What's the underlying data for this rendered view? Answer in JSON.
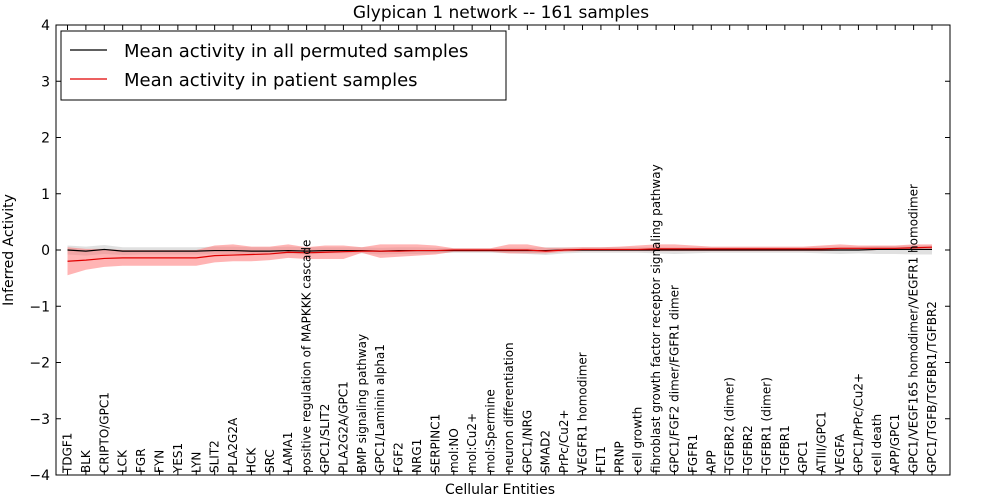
{
  "chart_data": {
    "type": "line",
    "title": "Glypican 1 network -- 161 samples",
    "xlabel": "Cellular Entities",
    "ylabel": "Inferred Activity",
    "ylim": [
      -4,
      4
    ],
    "yticks": [
      -4,
      -3,
      -2,
      -1,
      0,
      1,
      2,
      3,
      4
    ],
    "ytick_labels": [
      "−4",
      "−3",
      "−2",
      "−1",
      "0",
      "1",
      "2",
      "3",
      "4"
    ],
    "grid": false,
    "legend_position": "top-left",
    "categories": [
      "TDGF1",
      "BLK",
      "CRIPTO/GPC1",
      "LCK",
      "FGR",
      "FYN",
      "YES1",
      "LYN",
      "SLIT2",
      "PLA2G2A",
      "HCK",
      "SRC",
      "LAMA1",
      "positive regulation of MAPKKK cascade",
      "GPC1/SLIT2",
      "PLA2G2A/GPC1",
      "BMP signaling pathway",
      "GPC1/Laminin alpha1",
      "FGF2",
      "NRG1",
      "SERPINC1",
      "mol:NO",
      "mol:Cu2+",
      "mol:Spermine",
      "neuron differentiation",
      "GPC1/NRG",
      "SMAD2",
      "PrPc/Cu2+",
      "VEGFR1 homodimer",
      "FLT1",
      "PRNP",
      "cell growth",
      "fibroblast growth factor receptor signaling pathway",
      "GPC1/FGF2 dimer/FGFR1 dimer",
      "FGFR1",
      "APP",
      "TGFBR2 (dimer)",
      "TGFBR2",
      "TGFBR1 (dimer)",
      "TGFBR1",
      "GPC1",
      "ATIII/GPC1",
      "VEGFA",
      "GPC1/PrPc/Cu2+",
      "cell death",
      "APP/GPC1",
      "GPC1/VEGF165 homodimer/VEGFR1 homodimer",
      "GPC1/TGFB/TGFBR1/TGFBR2"
    ],
    "series": [
      {
        "name": "Mean activity in all permuted samples",
        "color": "#000000",
        "band_color": "#bbbbbb",
        "values": [
          0.0,
          -0.02,
          0.01,
          -0.02,
          -0.02,
          -0.02,
          -0.02,
          -0.02,
          -0.01,
          -0.01,
          -0.02,
          -0.02,
          -0.01,
          -0.02,
          -0.01,
          -0.01,
          -0.01,
          -0.02,
          -0.01,
          -0.01,
          -0.01,
          -0.01,
          -0.01,
          -0.01,
          -0.01,
          -0.01,
          -0.01,
          0.0,
          0.0,
          0.0,
          0.0,
          0.0,
          0.0,
          0.0,
          0.0,
          0.0,
          0.0,
          0.0,
          0.0,
          0.0,
          0.0,
          0.0,
          0.0,
          0.0,
          0.01,
          0.01,
          0.01,
          0.01
        ],
        "lower": [
          -0.08,
          -0.1,
          -0.07,
          -0.09,
          -0.08,
          -0.08,
          -0.08,
          -0.08,
          -0.07,
          -0.07,
          -0.09,
          -0.08,
          -0.07,
          -0.08,
          -0.06,
          -0.06,
          -0.06,
          -0.08,
          -0.07,
          -0.07,
          -0.06,
          -0.05,
          -0.05,
          -0.05,
          -0.06,
          -0.07,
          -0.09,
          -0.06,
          -0.05,
          -0.05,
          -0.05,
          -0.05,
          -0.06,
          -0.07,
          -0.06,
          -0.05,
          -0.05,
          -0.05,
          -0.05,
          -0.05,
          -0.05,
          -0.06,
          -0.07,
          -0.06,
          -0.07,
          -0.07,
          -0.08,
          -0.08
        ],
        "upper": [
          0.08,
          0.06,
          0.09,
          0.05,
          0.05,
          0.05,
          0.05,
          0.05,
          0.06,
          0.06,
          0.05,
          0.05,
          0.06,
          0.05,
          0.05,
          0.05,
          0.05,
          0.04,
          0.05,
          0.05,
          0.04,
          0.03,
          0.03,
          0.03,
          0.04,
          0.04,
          0.05,
          0.05,
          0.05,
          0.05,
          0.05,
          0.05,
          0.05,
          0.05,
          0.05,
          0.05,
          0.05,
          0.05,
          0.05,
          0.05,
          0.05,
          0.06,
          0.06,
          0.06,
          0.07,
          0.07,
          0.08,
          0.08
        ]
      },
      {
        "name": "Mean activity in patient samples",
        "color": "#e00000",
        "band_color": "#ff7777",
        "values": [
          -0.2,
          -0.18,
          -0.15,
          -0.14,
          -0.14,
          -0.14,
          -0.14,
          -0.14,
          -0.1,
          -0.09,
          -0.08,
          -0.07,
          -0.04,
          -0.05,
          -0.04,
          -0.03,
          -0.02,
          -0.02,
          -0.02,
          -0.01,
          -0.01,
          0.0,
          0.0,
          0.0,
          0.0,
          0.0,
          -0.02,
          0.0,
          0.01,
          0.01,
          0.01,
          0.01,
          0.02,
          0.02,
          0.02,
          0.02,
          0.02,
          0.02,
          0.02,
          0.02,
          0.02,
          0.02,
          0.03,
          0.03,
          0.03,
          0.03,
          0.04,
          0.05
        ],
        "lower": [
          -0.45,
          -0.35,
          -0.3,
          -0.28,
          -0.28,
          -0.28,
          -0.28,
          -0.28,
          -0.22,
          -0.2,
          -0.2,
          -0.18,
          -0.14,
          -0.16,
          -0.16,
          -0.16,
          -0.05,
          -0.14,
          -0.12,
          -0.1,
          -0.08,
          -0.03,
          -0.03,
          -0.03,
          -0.06,
          -0.06,
          -0.06,
          -0.03,
          -0.02,
          -0.02,
          -0.02,
          -0.02,
          -0.02,
          -0.02,
          -0.02,
          -0.02,
          -0.02,
          -0.02,
          -0.02,
          -0.02,
          -0.02,
          -0.02,
          -0.01,
          -0.01,
          0.0,
          0.0,
          0.0,
          0.0
        ],
        "upper": [
          0.05,
          0.02,
          0.02,
          0.0,
          0.0,
          0.0,
          0.0,
          0.0,
          0.08,
          0.1,
          0.06,
          0.06,
          0.1,
          0.05,
          0.08,
          0.08,
          0.05,
          0.1,
          0.1,
          0.1,
          0.08,
          0.03,
          0.03,
          0.03,
          0.1,
          0.1,
          0.04,
          0.04,
          0.05,
          0.05,
          0.06,
          0.08,
          0.1,
          0.1,
          0.08,
          0.06,
          0.06,
          0.06,
          0.06,
          0.06,
          0.06,
          0.08,
          0.1,
          0.08,
          0.08,
          0.08,
          0.1,
          0.1
        ]
      }
    ]
  }
}
